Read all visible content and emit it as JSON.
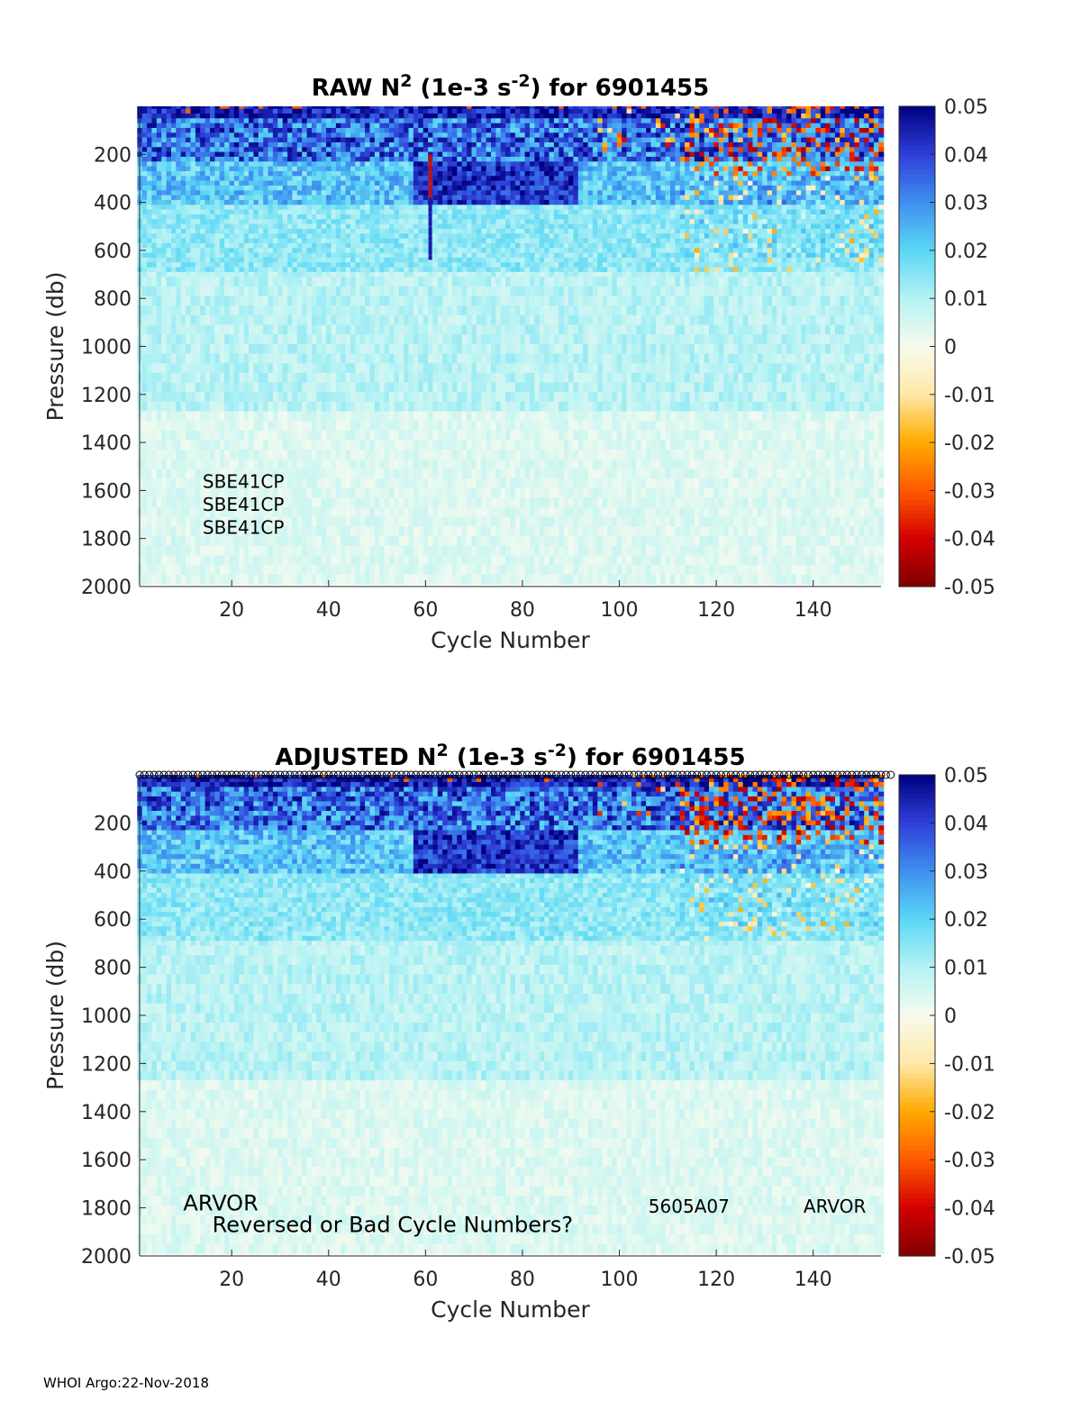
{
  "footer": "WHOI Argo:22-Nov-2018",
  "chart_data": [
    {
      "type": "heatmap",
      "title_parts": [
        "RAW N",
        "2",
        " (1e-3 s",
        "-2",
        ") for 6901455"
      ],
      "xlabel": "Cycle Number",
      "ylabel": "Pressure (db)",
      "xlim": [
        1,
        154
      ],
      "ylim": [
        0,
        2000
      ],
      "y_reversed": true,
      "x_ticks": [
        "20",
        "40",
        "60",
        "80",
        "100",
        "120",
        "140"
      ],
      "y_ticks": [
        "200",
        "400",
        "600",
        "800",
        "1000",
        "1200",
        "1400",
        "1600",
        "1800",
        "2000"
      ],
      "colorbar": {
        "range": [
          -0.05,
          0.05
        ],
        "ticks": [
          "0.05",
          "0.04",
          "0.03",
          "0.02",
          "0.01",
          "0",
          "-0.01",
          "-0.02",
          "-0.03",
          "-0.04",
          "-0.05"
        ],
        "colormap": [
          "#800000",
          "#d40000",
          "#ff5a00",
          "#ffaa00",
          "#ffe8a8",
          "#f7fbee",
          "#b4f2f4",
          "#5ad7f5",
          "#3f8ff0",
          "#2e3fd8",
          "#000080"
        ]
      },
      "annotations": [
        {
          "text": "SBE41CP",
          "x": 14,
          "y": 1590
        },
        {
          "text": "SBE41CP",
          "x": 14,
          "y": 1685
        },
        {
          "text": "SBE41CP",
          "x": 14,
          "y": 1780
        }
      ],
      "markers": "none"
    },
    {
      "type": "heatmap",
      "title_parts": [
        "ADJUSTED N",
        "2",
        " (1e-3 s",
        "-2",
        ") for 6901455"
      ],
      "xlabel": "Cycle Number",
      "ylabel": "Pressure (db)",
      "xlim": [
        1,
        154
      ],
      "ylim": [
        0,
        2000
      ],
      "y_reversed": true,
      "x_ticks": [
        "20",
        "40",
        "60",
        "80",
        "100",
        "120",
        "140"
      ],
      "y_ticks": [
        "200",
        "400",
        "600",
        "800",
        "1000",
        "1200",
        "1400",
        "1600",
        "1800",
        "2000"
      ],
      "colorbar": {
        "range": [
          -0.05,
          0.05
        ],
        "ticks": [
          "0.05",
          "0.04",
          "0.03",
          "0.02",
          "0.01",
          "0",
          "-0.01",
          "-0.02",
          "-0.03",
          "-0.04",
          "-0.05"
        ],
        "colormap": [
          "#800000",
          "#d40000",
          "#ff5a00",
          "#ffaa00",
          "#ffe8a8",
          "#f7fbee",
          "#b4f2f4",
          "#5ad7f5",
          "#3f8ff0",
          "#2e3fd8",
          "#000080"
        ]
      },
      "annotations": [
        {
          "text": "ARVOR",
          "x": 10,
          "y": 1810
        },
        {
          "text": "Reversed or Bad Cycle Numbers?",
          "x": 16,
          "y": 1900
        },
        {
          "text": "5605A07",
          "x": 106,
          "y": 1820
        },
        {
          "text": "ARVOR",
          "x": 138,
          "y": 1820
        }
      ],
      "markers": "top-circles"
    }
  ]
}
